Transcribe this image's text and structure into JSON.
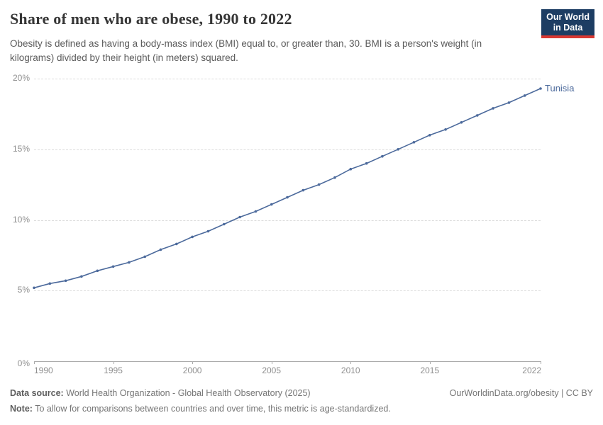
{
  "header": {
    "title": "Share of men who are obese, 1990 to 2022",
    "subtitle": "Obesity is defined as having a body-mass index (BMI) equal to, or greater than, 30. BMI is a person's weight (in kilograms) divided by their height (in meters) squared.",
    "logo": {
      "line1": "Our World",
      "line2": "in Data",
      "bg_color": "#1d3d63",
      "accent_color": "#d93832"
    }
  },
  "chart_data": {
    "type": "line",
    "title": "Share of men who are obese, 1990 to 2022",
    "xlabel": "",
    "ylabel": "",
    "xlim": [
      1990,
      2022
    ],
    "ylim": [
      0,
      20
    ],
    "grid": "horizontal-dashed",
    "legend": "series-end-label",
    "x": [
      1990,
      1991,
      1992,
      1993,
      1994,
      1995,
      1996,
      1997,
      1998,
      1999,
      2000,
      2001,
      2002,
      2003,
      2004,
      2005,
      2006,
      2007,
      2008,
      2009,
      2010,
      2011,
      2012,
      2013,
      2014,
      2015,
      2016,
      2017,
      2018,
      2019,
      2020,
      2021,
      2022
    ],
    "series": [
      {
        "name": "Tunisia",
        "color": "#4c6a9c",
        "values": [
          5.2,
          5.5,
          5.7,
          6.0,
          6.4,
          6.7,
          7.0,
          7.4,
          7.9,
          8.3,
          8.8,
          9.2,
          9.7,
          10.2,
          10.6,
          11.1,
          11.6,
          12.1,
          12.5,
          13.0,
          13.6,
          14.0,
          14.5,
          15.0,
          15.5,
          16.0,
          16.4,
          16.9,
          17.4,
          17.9,
          18.3,
          18.8,
          19.3
        ]
      }
    ],
    "y_ticks": [
      {
        "value": 0,
        "label": "0%"
      },
      {
        "value": 5,
        "label": "5%"
      },
      {
        "value": 10,
        "label": "10%"
      },
      {
        "value": 15,
        "label": "15%"
      },
      {
        "value": 20,
        "label": "20%"
      }
    ],
    "x_ticks": [
      {
        "year": 1990,
        "label": "1990",
        "align": "left"
      },
      {
        "year": 1995,
        "label": "1995",
        "align": "center"
      },
      {
        "year": 2000,
        "label": "2000",
        "align": "center"
      },
      {
        "year": 2005,
        "label": "2005",
        "align": "center"
      },
      {
        "year": 2010,
        "label": "2010",
        "align": "center"
      },
      {
        "year": 2015,
        "label": "2015",
        "align": "center"
      },
      {
        "year": 2022,
        "label": "2022",
        "align": "right"
      }
    ]
  },
  "footer": {
    "data_source_label": "Data source:",
    "data_source_value": "World Health Organization - Global Health Observatory (2025)",
    "credit": "OurWorldinData.org/obesity | CC BY",
    "note_label": "Note:",
    "note_value": "To allow for comparisons between countries and over time, this metric is age-standardized."
  }
}
